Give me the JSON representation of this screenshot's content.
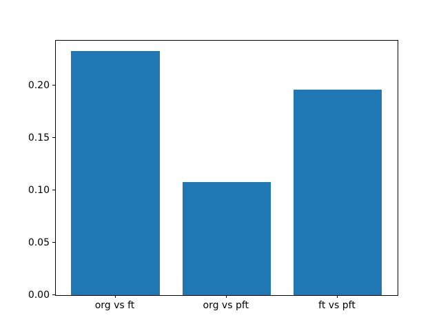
{
  "chart_data": {
    "type": "bar",
    "title": "",
    "xlabel": "",
    "ylabel": "",
    "categories": [
      "org vs ft",
      "org vs pft",
      "ft vs pft"
    ],
    "values": [
      0.233,
      0.108,
      0.196
    ],
    "ylim": [
      0,
      0.2428
    ],
    "yticks": [
      0.0,
      0.05,
      0.1,
      0.15,
      0.2
    ],
    "ytick_labels": [
      "0.00",
      "0.05",
      "0.10",
      "0.15",
      "0.20"
    ],
    "bar_color": "#1f77b4",
    "spine_color": "#000000",
    "background_color": "#ffffff",
    "grid": false,
    "legend": null
  }
}
